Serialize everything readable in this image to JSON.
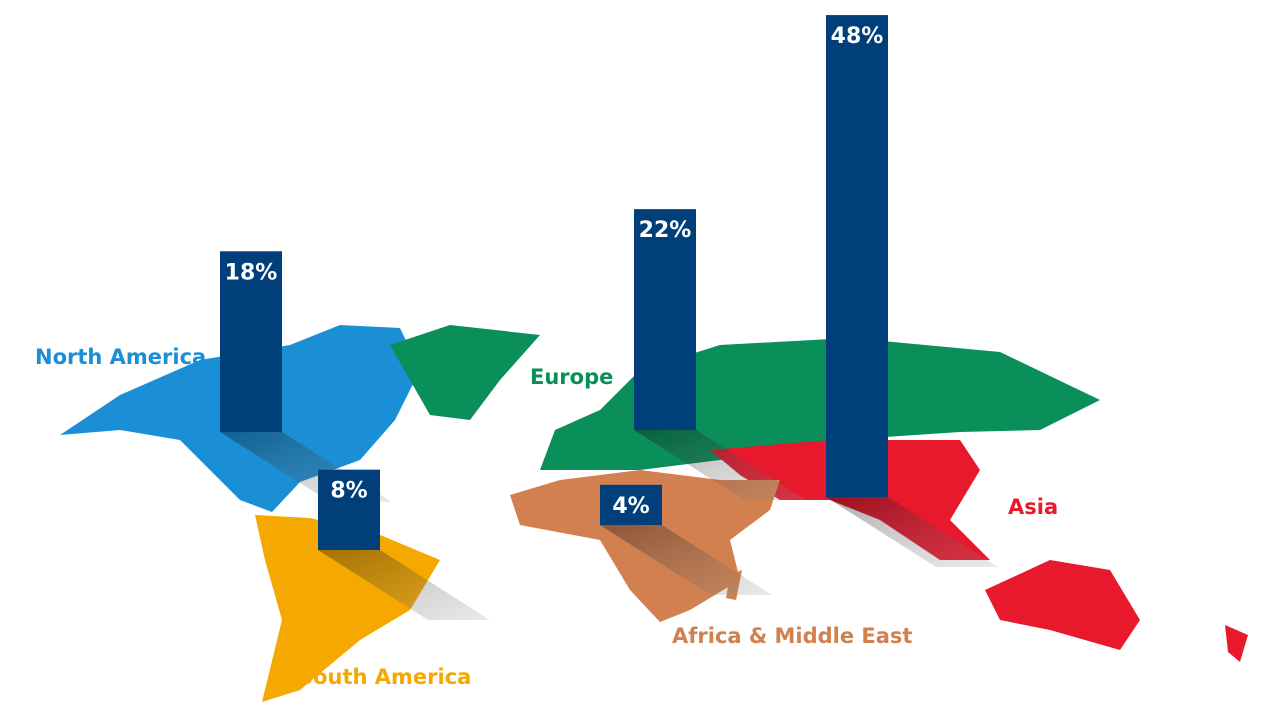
{
  "chart_data": {
    "type": "bar",
    "categories": [
      "North America",
      "South America",
      "Europe",
      "Africa & Middle East",
      "Asia"
    ],
    "values": [
      18,
      8,
      22,
      4,
      48
    ],
    "value_labels": [
      "18%",
      "8%",
      "22%",
      "4%",
      "48%"
    ],
    "color": "#003f7a",
    "label_colors": [
      "#1a8fd6",
      "#f5a800",
      "#0a8f5a",
      "#d2804f",
      "#e8182d"
    ]
  }
}
